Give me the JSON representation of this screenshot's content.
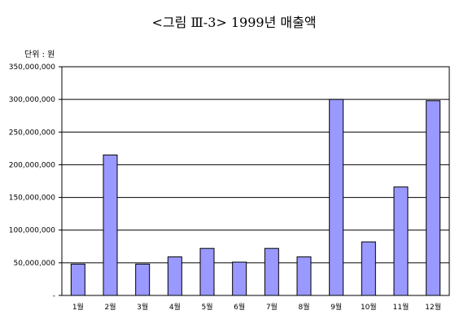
{
  "chart_data": {
    "type": "bar",
    "title": "<그림 Ⅲ-3> 1999년 매출액",
    "unit_label": "단위 : 원",
    "categories": [
      "1월",
      "2월",
      "3월",
      "4월",
      "5월",
      "6월",
      "7월",
      "8월",
      "9월",
      "10월",
      "11월",
      "12월"
    ],
    "values": [
      48000000,
      215000000,
      48000000,
      59000000,
      72000000,
      51000000,
      72000000,
      59000000,
      300000000,
      82000000,
      166000000,
      298000000
    ],
    "y_ticks": [
      0,
      50000000,
      100000000,
      150000000,
      200000000,
      250000000,
      300000000,
      350000000
    ],
    "y_tick_labels": [
      "-",
      "50,000,000",
      "100,000,000",
      "150,000,000",
      "200,000,000",
      "250,000,000",
      "300,000,000",
      "350,000,000"
    ],
    "ylim": [
      0,
      350000000
    ],
    "grid": true,
    "bar_color": "#9999ff"
  }
}
